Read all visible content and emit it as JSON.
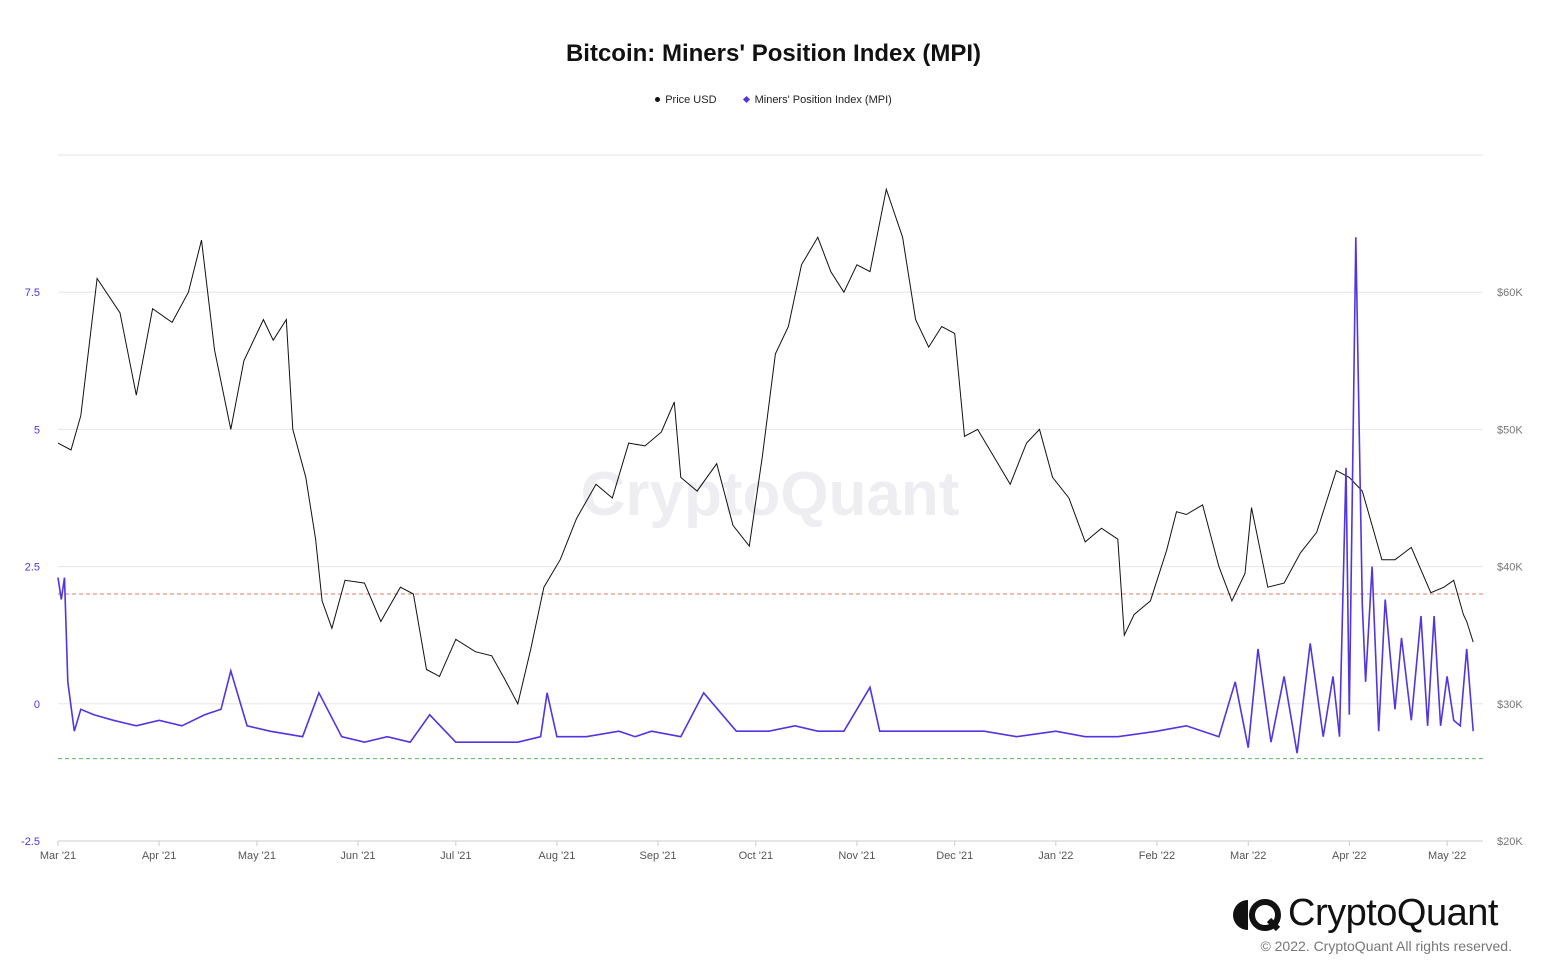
{
  "title": "Bitcoin: Miners' Position Index (MPI)",
  "legend": {
    "price_label": "Price USD",
    "mpi_label": "Miners' Position Index (MPI)"
  },
  "watermark": "CryptoQuant",
  "brand": {
    "name": "CryptoQuant",
    "copyright": "© 2022. CryptoQuant All rights reserved."
  },
  "colors": {
    "price": "#111111",
    "mpi": "#4f36e0",
    "upper_threshold": "#e07a6a",
    "lower_threshold": "#5cb85c",
    "grid": "#e6e6e6"
  },
  "chart_data": {
    "type": "line",
    "x_axis": {
      "ticks": [
        "Mar '21",
        "Apr '21",
        "May '21",
        "Jun '21",
        "Jul '21",
        "Aug '21",
        "Sep '21",
        "Oct '21",
        "Nov '21",
        "Dec '21",
        "Jan '22",
        "Feb '22",
        "Mar '22",
        "Apr '22",
        "May '22"
      ]
    },
    "y_left": {
      "range": [
        -2.5,
        10
      ],
      "ticks": [
        "-2.5",
        "0",
        "2.5",
        "5",
        "7.5"
      ],
      "tick_values": [
        -2.5,
        0,
        2.5,
        5,
        7.5
      ]
    },
    "y_right": {
      "range": [
        20000,
        70000
      ],
      "ticks": [
        "$20K",
        "$30K",
        "$40K",
        "$50K",
        "$60K"
      ],
      "tick_values": [
        20000,
        30000,
        40000,
        50000,
        60000
      ]
    },
    "thresholds": [
      {
        "axis": "left",
        "value": 2.0,
        "style": "dashed"
      },
      {
        "axis": "left",
        "value": -1.0,
        "style": "dashed"
      }
    ],
    "grid": true,
    "legend_position": "top-center",
    "series": [
      {
        "name": "Price USD",
        "axis": "right",
        "x": [
          "2021-03-01",
          "2021-03-05",
          "2021-03-08",
          "2021-03-13",
          "2021-03-20",
          "2021-03-25",
          "2021-03-30",
          "2021-04-05",
          "2021-04-10",
          "2021-04-14",
          "2021-04-18",
          "2021-04-23",
          "2021-04-27",
          "2021-05-03",
          "2021-05-06",
          "2021-05-10",
          "2021-05-12",
          "2021-05-16",
          "2021-05-19",
          "2021-05-21",
          "2021-05-24",
          "2021-05-28",
          "2021-06-03",
          "2021-06-08",
          "2021-06-14",
          "2021-06-18",
          "2021-06-22",
          "2021-06-26",
          "2021-07-01",
          "2021-07-07",
          "2021-07-12",
          "2021-07-16",
          "2021-07-20",
          "2021-07-24",
          "2021-07-28",
          "2021-08-02",
          "2021-08-07",
          "2021-08-13",
          "2021-08-18",
          "2021-08-23",
          "2021-08-28",
          "2021-09-02",
          "2021-09-06",
          "2021-09-08",
          "2021-09-13",
          "2021-09-19",
          "2021-09-24",
          "2021-09-29",
          "2021-10-03",
          "2021-10-07",
          "2021-10-11",
          "2021-10-15",
          "2021-10-20",
          "2021-10-24",
          "2021-10-28",
          "2021-11-01",
          "2021-11-05",
          "2021-11-10",
          "2021-11-15",
          "2021-11-19",
          "2021-11-23",
          "2021-11-27",
          "2021-12-01",
          "2021-12-04",
          "2021-12-08",
          "2021-12-13",
          "2021-12-18",
          "2021-12-23",
          "2021-12-27",
          "2021-12-31",
          "2022-01-05",
          "2022-01-10",
          "2022-01-15",
          "2022-01-20",
          "2022-01-22",
          "2022-01-25",
          "2022-01-30",
          "2022-02-04",
          "2022-02-07",
          "2022-02-10",
          "2022-02-15",
          "2022-02-20",
          "2022-02-24",
          "2022-02-28",
          "2022-03-02",
          "2022-03-07",
          "2022-03-12",
          "2022-03-17",
          "2022-03-22",
          "2022-03-28",
          "2022-04-01",
          "2022-04-05",
          "2022-04-11",
          "2022-04-15",
          "2022-04-20",
          "2022-04-26",
          "2022-04-30",
          "2022-05-03",
          "2022-05-06",
          "2022-05-07",
          "2022-05-09"
        ],
        "values": [
          49000,
          48500,
          51000,
          61000,
          58500,
          52500,
          58800,
          57800,
          60000,
          63800,
          55800,
          50000,
          55000,
          58000,
          56500,
          58000,
          50000,
          46500,
          42000,
          37500,
          35500,
          39000,
          38800,
          36000,
          38500,
          38000,
          32500,
          32000,
          34700,
          33800,
          33500,
          31800,
          30000,
          34000,
          38500,
          40500,
          43500,
          46000,
          45000,
          49000,
          48800,
          49800,
          52000,
          46500,
          45500,
          47500,
          43000,
          41500,
          48000,
          55500,
          57500,
          62000,
          64000,
          61500,
          60000,
          62000,
          61500,
          67500,
          64000,
          58000,
          56000,
          57500,
          57000,
          49500,
          50000,
          48000,
          46000,
          49000,
          50000,
          46500,
          45000,
          41800,
          42800,
          42000,
          35000,
          36500,
          37500,
          41200,
          44000,
          43800,
          44500,
          40000,
          37500,
          39500,
          44300,
          38500,
          38800,
          41000,
          42500,
          47000,
          46500,
          45500,
          40500,
          40500,
          41400,
          38100,
          38500,
          39000,
          36500,
          36000,
          34500
        ]
      },
      {
        "name": "Miners' Position Index (MPI)",
        "axis": "left",
        "x": [
          "2021-03-01",
          "2021-03-02",
          "2021-03-03",
          "2021-03-04",
          "2021-03-06",
          "2021-03-08",
          "2021-03-12",
          "2021-03-18",
          "2021-03-25",
          "2021-04-01",
          "2021-04-08",
          "2021-04-15",
          "2021-04-20",
          "2021-04-23",
          "2021-04-28",
          "2021-05-05",
          "2021-05-15",
          "2021-05-20",
          "2021-05-27",
          "2021-06-03",
          "2021-06-10",
          "2021-06-17",
          "2021-06-23",
          "2021-07-01",
          "2021-07-10",
          "2021-07-20",
          "2021-07-27",
          "2021-07-29",
          "2021-08-01",
          "2021-08-10",
          "2021-08-20",
          "2021-08-25",
          "2021-08-30",
          "2021-09-08",
          "2021-09-15",
          "2021-09-25",
          "2021-10-05",
          "2021-10-13",
          "2021-10-20",
          "2021-10-28",
          "2021-11-05",
          "2021-11-08",
          "2021-11-20",
          "2021-12-01",
          "2021-12-10",
          "2021-12-20",
          "2022-01-01",
          "2022-01-10",
          "2022-01-20",
          "2022-02-01",
          "2022-02-10",
          "2022-02-15",
          "2022-02-20",
          "2022-02-25",
          "2022-03-01",
          "2022-03-04",
          "2022-03-08",
          "2022-03-12",
          "2022-03-16",
          "2022-03-20",
          "2022-03-24",
          "2022-03-27",
          "2022-03-29",
          "2022-03-31",
          "2022-04-01",
          "2022-04-03",
          "2022-04-05",
          "2022-04-06",
          "2022-04-08",
          "2022-04-10",
          "2022-04-12",
          "2022-04-15",
          "2022-04-17",
          "2022-04-20",
          "2022-04-23",
          "2022-04-25",
          "2022-04-27",
          "2022-04-29",
          "2022-05-01",
          "2022-05-03",
          "2022-05-05",
          "2022-05-07",
          "2022-05-09"
        ],
        "values": [
          2.3,
          1.9,
          2.3,
          0.4,
          -0.5,
          -0.1,
          -0.2,
          -0.3,
          -0.4,
          -0.3,
          -0.4,
          -0.2,
          -0.1,
          0.6,
          -0.4,
          -0.5,
          -0.6,
          0.2,
          -0.6,
          -0.7,
          -0.6,
          -0.7,
          -0.2,
          -0.7,
          -0.7,
          -0.7,
          -0.6,
          0.2,
          -0.6,
          -0.6,
          -0.5,
          -0.6,
          -0.5,
          -0.6,
          0.2,
          -0.5,
          -0.5,
          -0.4,
          -0.5,
          -0.5,
          0.3,
          -0.5,
          -0.5,
          -0.5,
          -0.5,
          -0.6,
          -0.5,
          -0.6,
          -0.6,
          -0.5,
          -0.4,
          -0.5,
          -0.6,
          0.4,
          -0.8,
          1.0,
          -0.7,
          0.5,
          -0.9,
          1.1,
          -0.6,
          0.5,
          -0.6,
          4.3,
          -0.2,
          8.5,
          1.8,
          0.4,
          2.5,
          -0.5,
          1.9,
          -0.1,
          1.2,
          -0.3,
          1.6,
          -0.4,
          1.6,
          -0.4,
          0.5,
          -0.3,
          -0.4,
          1.0,
          -0.5
        ]
      }
    ]
  }
}
